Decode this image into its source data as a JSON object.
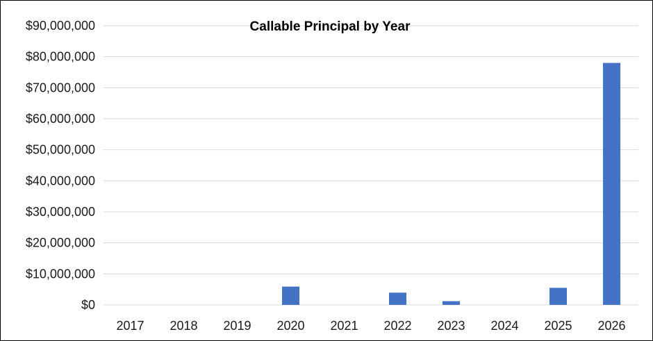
{
  "chart_data": {
    "type": "bar",
    "title": "Callable Principal by Year",
    "xlabel": "",
    "ylabel": "",
    "categories": [
      "2017",
      "2018",
      "2019",
      "2020",
      "2021",
      "2022",
      "2023",
      "2024",
      "2025",
      "2026"
    ],
    "series": [
      {
        "values": [
          0,
          0,
          0,
          5900000,
          0,
          3950000,
          1200000,
          0,
          5500000,
          78000000
        ]
      }
    ],
    "ylim": [
      0,
      90000000
    ],
    "yticks": [
      0,
      10000000,
      20000000,
      30000000,
      40000000,
      50000000,
      60000000,
      70000000,
      80000000,
      90000000
    ],
    "ytick_labels": [
      "$0",
      "$10,000,000",
      "$20,000,000",
      "$30,000,000",
      "$40,000,000",
      "$50,000,000",
      "$60,000,000",
      "$70,000,000",
      "$80,000,000",
      "$90,000,000"
    ],
    "grid": true,
    "legend": "none",
    "colors": {
      "bar": "#4472C4",
      "grid": "#D9D9D9",
      "axis_text": "#1a1a1a"
    }
  }
}
